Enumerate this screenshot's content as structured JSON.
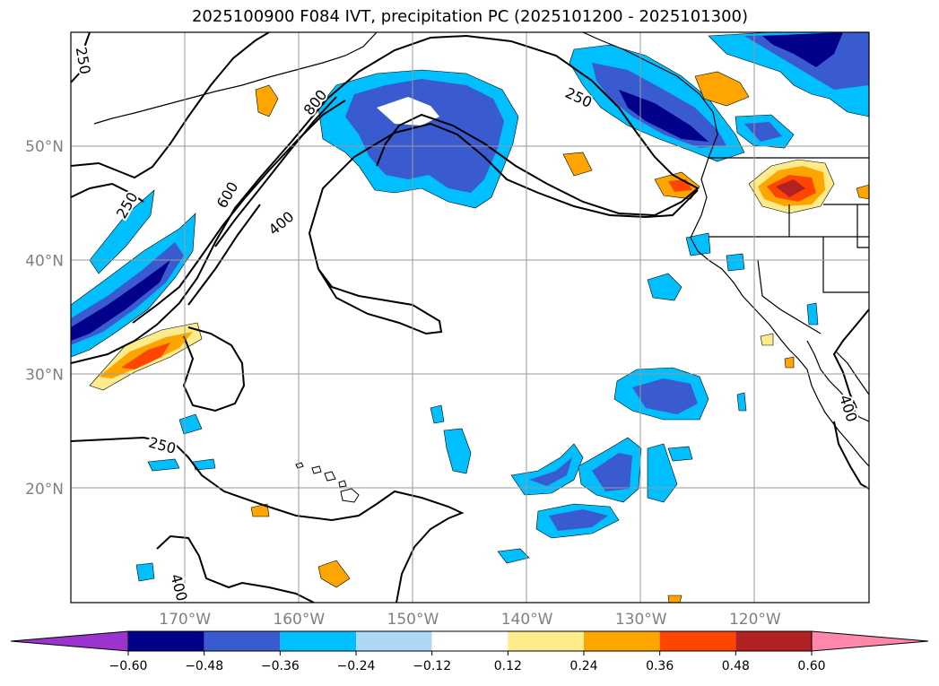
{
  "title": "2025100900 F084 IVT, precipitation PC (2025101200 - 2025101300)",
  "map": {
    "lat_range": [
      10,
      60
    ],
    "lon_range": [
      -180,
      -110
    ],
    "lat_ticks": [
      {
        "value": 50,
        "label": "50°N"
      },
      {
        "value": 40,
        "label": "40°N"
      },
      {
        "value": 30,
        "label": "30°N"
      },
      {
        "value": 20,
        "label": "20°N"
      }
    ],
    "lon_ticks": [
      {
        "value": -170,
        "label": "170°W"
      },
      {
        "value": -160,
        "label": "160°W"
      },
      {
        "value": -150,
        "label": "150°W"
      },
      {
        "value": -140,
        "label": "140°W"
      },
      {
        "value": -130,
        "label": "130°W"
      },
      {
        "value": -120,
        "label": "120°W"
      }
    ],
    "contour_labels": [
      {
        "text": "250",
        "lon": -179,
        "lat": 57.5,
        "rot": 80
      },
      {
        "text": "250",
        "lon": -175,
        "lat": 44.8,
        "rot": -60
      },
      {
        "text": "600",
        "lon": -166.2,
        "lat": 45.7,
        "rot": -60
      },
      {
        "text": "400",
        "lon": -161.5,
        "lat": 43.2,
        "rot": -40
      },
      {
        "text": "800",
        "lon": -158.5,
        "lat": 53.8,
        "rot": -52
      },
      {
        "text": "250",
        "lon": -135.5,
        "lat": 54.2,
        "rot": 25
      },
      {
        "text": "250",
        "lon": -172,
        "lat": 23.7,
        "rot": 15
      },
      {
        "text": "400",
        "lon": -170.6,
        "lat": 11.3,
        "rot": 75
      },
      {
        "text": "400",
        "lon": -111.9,
        "lat": 27,
        "rot": 72
      }
    ]
  },
  "colorbar": {
    "ticks": [
      "−0.60",
      "−0.48",
      "−0.36",
      "−0.24",
      "−0.12",
      "0.12",
      "0.24",
      "0.36",
      "0.48",
      "0.60"
    ],
    "colors": [
      "#9b34cf",
      "#00008b",
      "#3a5bcf",
      "#00bfff",
      "#add8f5",
      "#ffffff",
      "#ffeb8a",
      "#ffa500",
      "#ff4500",
      "#b22222",
      "#ff88aa"
    ]
  }
}
